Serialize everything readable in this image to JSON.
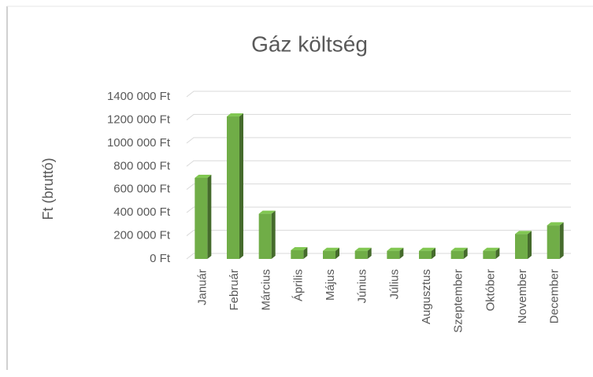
{
  "chart_data": {
    "type": "bar3d",
    "title": "Gáz költség",
    "y_label": "Ft (bruttó)",
    "categories": [
      "Január",
      "Február",
      "Március",
      "Április",
      "Május",
      "Június",
      "Július",
      "Augusztus",
      "Szeptember",
      "Október",
      "November",
      "December"
    ],
    "values": [
      700000,
      1230000,
      390000,
      75000,
      70000,
      70000,
      70000,
      70000,
      70000,
      70000,
      215000,
      290000
    ],
    "color": "#70ad47",
    "ylim": [
      0,
      1400000
    ],
    "yticks": [
      {
        "value": 0,
        "label": "0 Ft"
      },
      {
        "value": 200000,
        "label": "200 000 Ft"
      },
      {
        "value": 400000,
        "label": "400 000 Ft"
      },
      {
        "value": 600000,
        "label": "600 000 Ft"
      },
      {
        "value": 800000,
        "label": "800 000 Ft"
      },
      {
        "value": 1000000,
        "label": "1000 000 Ft"
      },
      {
        "value": 1200000,
        "label": "1200 000 Ft"
      },
      {
        "value": 1400000,
        "label": "1400 000 Ft"
      }
    ],
    "grid": true
  }
}
